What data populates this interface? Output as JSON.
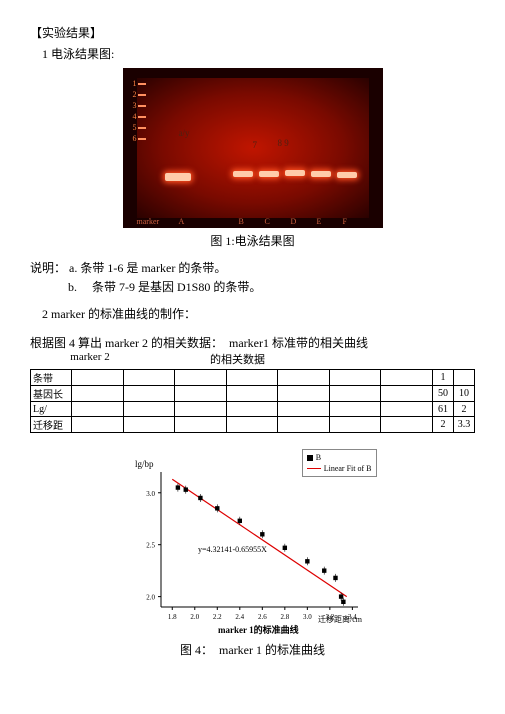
{
  "sectionHeader": "【实验结果】",
  "item1": "1 电泳结果图:",
  "fig1Caption": "图 1:电泳结果图",
  "notesIntro": "说明：",
  "noteA": "a. 条带 1-6 是 marker 的条带。",
  "noteB": "b. 　条带 7-9 是基因 D1S80 的条带。",
  "item2": "2 marker 的标准曲线的制作：",
  "tableIntro": "根据图 4 算出 marker 2 的相关数据：　marker1 标准带的相关曲线",
  "tableHeader1": "marker 2",
  "tableHeader2": "的相关数据",
  "rowLabels": {
    "r1": "条带",
    "r2": "基因长",
    "r3": "Lg/",
    "r4": "迁移距"
  },
  "tableTail": {
    "r1": [
      "1",
      ""
    ],
    "r2": [
      "50",
      "10"
    ],
    "r3": [
      "61",
      "2"
    ],
    "r4": [
      "2",
      "3.3"
    ]
  },
  "gel": {
    "ladder": [
      "1",
      "2",
      "3",
      "4",
      "5",
      "6"
    ],
    "annot7": "7",
    "annot89": "8 9",
    "annotA": "a/y",
    "lanes": [
      "marker",
      "A",
      "B",
      "C",
      "D",
      "E",
      "F"
    ]
  },
  "chart": {
    "legend1": "B",
    "legend2": "Linear Fit of B",
    "ylabel": "lg/bp",
    "xlabel": "迁移距离/cm",
    "title": "marker 1的标准曲线",
    "equation": "y=4.32141-0.65955X",
    "xticks": [
      "1.8",
      "2.0",
      "2.2",
      "2.4",
      "2.6",
      "2.8",
      "3.0",
      "3.2",
      "3.4"
    ],
    "yticks": [
      "2.0",
      "2.5",
      "3.0"
    ],
    "points": [
      {
        "x": 1.85,
        "y": 3.05
      },
      {
        "x": 1.92,
        "y": 3.03
      },
      {
        "x": 2.05,
        "y": 2.95
      },
      {
        "x": 2.2,
        "y": 2.85
      },
      {
        "x": 2.4,
        "y": 2.73
      },
      {
        "x": 2.6,
        "y": 2.6
      },
      {
        "x": 2.8,
        "y": 2.47
      },
      {
        "x": 3.0,
        "y": 2.34
      },
      {
        "x": 3.15,
        "y": 2.25
      },
      {
        "x": 3.25,
        "y": 2.18
      },
      {
        "x": 3.3,
        "y": 2.0
      },
      {
        "x": 3.32,
        "y": 1.95
      }
    ],
    "line": {
      "x1": 1.8,
      "y1": 3.13,
      "x2": 3.35,
      "y2": 2.0
    }
  },
  "fig4Caption": "图 4：　marker 1 的标准曲线"
}
